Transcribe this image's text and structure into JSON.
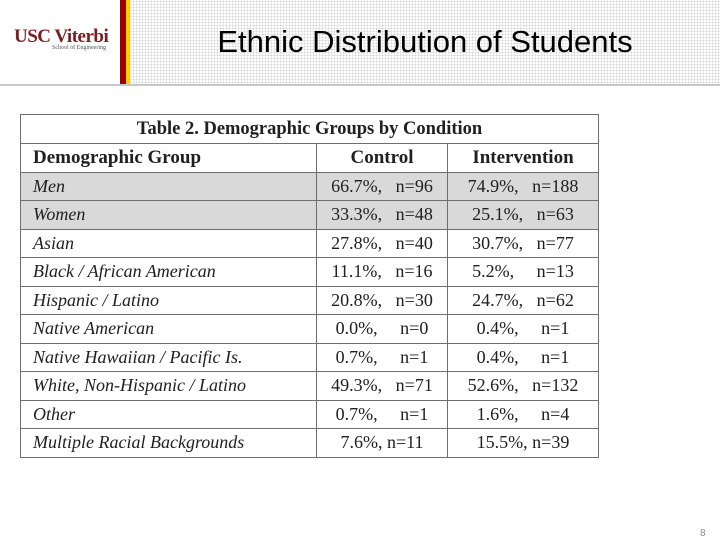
{
  "header": {
    "logo_main": "USC Viterbi",
    "logo_sub": "School of Engineering",
    "title": "Ethnic Distribution of Students"
  },
  "table": {
    "caption": "Table 2. Demographic Groups by Condition",
    "columns": [
      "Demographic Group",
      "Control",
      "Intervention"
    ],
    "rows": [
      {
        "group": "Men",
        "control": "66.7%,   n=96",
        "intervention": "74.9%,   n=188"
      },
      {
        "group": "Women",
        "control": "33.3%,   n=48",
        "intervention": "25.1%,   n=63"
      },
      {
        "group": "Asian",
        "control": "27.8%,   n=40",
        "intervention": "30.7%,   n=77"
      },
      {
        "group": "Black / African American",
        "control": "11.1%,   n=16",
        "intervention": "5.2%,     n=13"
      },
      {
        "group": "Hispanic / Latino",
        "control": "20.8%,   n=30",
        "intervention": "24.7%,   n=62"
      },
      {
        "group": "Native American",
        "control": "0.0%,     n=0",
        "intervention": "0.4%,     n=1"
      },
      {
        "group": "Native Hawaiian / Pacific Is.",
        "control": "0.7%,     n=1",
        "intervention": "0.4%,     n=1"
      },
      {
        "group": "White, Non-Hispanic / Latino",
        "control": "49.3%,   n=71",
        "intervention": "52.6%,   n=132"
      },
      {
        "group": "Other",
        "control": "0.7%,     n=1",
        "intervention": "1.6%,     n=4"
      },
      {
        "group": "Multiple Racial Backgrounds",
        "control": "7.6%, n=11",
        "intervention": "15.5%, n=39"
      }
    ]
  },
  "footer": {
    "page_number": "8"
  }
}
